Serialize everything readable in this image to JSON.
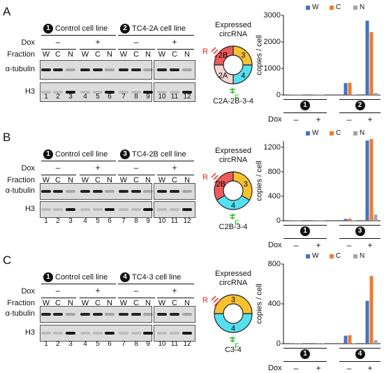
{
  "colors": {
    "W": "#4472c4",
    "C": "#ed7d31",
    "N": "#a5a5a5"
  },
  "panels": [
    {
      "letter": "A",
      "cell_line_1": "Control cell line",
      "cell_line_2": "TC4-2A cell line",
      "line_num_1": "1",
      "line_num_2": "2",
      "dox_label": "Dox",
      "fraction_label": "Fraction",
      "dox_signs": [
        "–",
        "+",
        "–",
        "+"
      ],
      "fractions": [
        "W",
        "C",
        "N",
        "W",
        "C",
        "N",
        "W",
        "C",
        "N",
        "W",
        "C",
        "N"
      ],
      "blot_labels": [
        "α-tubulin",
        "H3"
      ],
      "lanes": [
        "1",
        "2",
        "3",
        "4",
        "5",
        "6",
        "7",
        "8",
        "9",
        "10",
        "11",
        "12"
      ],
      "expressed": "Expressed\ncircRNA",
      "segments": [
        "2B",
        "3",
        "4",
        "2A"
      ],
      "primer_R": "R",
      "primer_F": "F",
      "construct": "C2A-2B-3-4",
      "chart_data": {
        "type": "bar",
        "ylabel": "copies / cell",
        "ylim": [
          0,
          3000
        ],
        "yticks": [
          "0",
          "1000",
          "2000",
          "3000"
        ],
        "categories": [
          "1 –",
          "1 +",
          "2 –",
          "2 +"
        ],
        "series": [
          {
            "name": "W",
            "values": [
              10,
              10,
              450,
              2800
            ]
          },
          {
            "name": "C",
            "values": [
              10,
              10,
              460,
              2370
            ]
          },
          {
            "name": "N",
            "values": [
              10,
              10,
              10,
              80
            ]
          }
        ],
        "legend": "top",
        "x_groups": [
          "1",
          "2"
        ],
        "x_signs": [
          "–",
          "+",
          "–",
          "+"
        ],
        "x_dox_label": "Dox"
      }
    },
    {
      "letter": "B",
      "cell_line_1": "Control cell line",
      "cell_line_2": "TC4-2B cell line",
      "line_num_1": "1",
      "line_num_2": "3",
      "dox_label": "Dox",
      "fraction_label": "Fraction",
      "dox_signs": [
        "–",
        "+",
        "–",
        "+"
      ],
      "fractions": [
        "W",
        "C",
        "N",
        "W",
        "C",
        "N",
        "W",
        "C",
        "N",
        "W",
        "C",
        "N"
      ],
      "blot_labels": [
        "α-tubulin",
        "H3"
      ],
      "lanes": [
        "1",
        "2",
        "3",
        "4",
        "5",
        "6",
        "7",
        "8",
        "9",
        "10",
        "11",
        "12"
      ],
      "expressed": "Expressed\ncircRNA",
      "segments": [
        "2B",
        "3",
        "4"
      ],
      "primer_R": "R",
      "primer_F": "F",
      "construct": "C2B-3-4",
      "chart_data": {
        "type": "bar",
        "ylabel": "copies / cell",
        "ylim": [
          0,
          1300
        ],
        "yticks": [
          "0",
          "400",
          "800",
          "1200"
        ],
        "categories": [
          "1 –",
          "1 +",
          "3 –",
          "3 +"
        ],
        "series": [
          {
            "name": "W",
            "values": [
              5,
              5,
              30,
              1310
            ]
          },
          {
            "name": "C",
            "values": [
              5,
              5,
              35,
              1335
            ]
          },
          {
            "name": "N",
            "values": [
              5,
              5,
              5,
              100
            ]
          }
        ],
        "legend": "top-right",
        "x_groups": [
          "1",
          "3"
        ],
        "x_signs": [
          "–",
          "+",
          "–",
          "+"
        ],
        "x_dox_label": "Dox"
      }
    },
    {
      "letter": "C",
      "cell_line_1": "Control cell line",
      "cell_line_2": "TC4-3 cell line",
      "line_num_1": "1",
      "line_num_2": "4",
      "dox_label": "Dox",
      "fraction_label": "Fraction",
      "dox_signs": [
        "–",
        "+",
        "–",
        "+"
      ],
      "fractions": [
        "W",
        "C",
        "N",
        "W",
        "C",
        "N",
        "W",
        "C",
        "N",
        "W",
        "C",
        "N"
      ],
      "blot_labels": [
        "α-tubulin",
        "H3"
      ],
      "lanes": [
        "1",
        "2",
        "3",
        "4",
        "5",
        "6",
        "7",
        "8",
        "9",
        "10",
        "11",
        "12"
      ],
      "expressed": "Expressed\ncircRNA",
      "segments": [
        "3",
        "4"
      ],
      "primer_R": "R",
      "primer_F": "F",
      "construct": "C3-4",
      "chart_data": {
        "type": "bar",
        "ylabel": "copies / cell",
        "ylim": [
          0,
          800
        ],
        "yticks": [
          "0",
          "400",
          "800"
        ],
        "categories": [
          "1 –",
          "1 +",
          "4 –",
          "4 +"
        ],
        "series": [
          {
            "name": "W",
            "values": [
              5,
              5,
              80,
              430
            ]
          },
          {
            "name": "C",
            "values": [
              5,
              5,
              85,
              680
            ]
          },
          {
            "name": "N",
            "values": [
              5,
              5,
              5,
              35
            ]
          }
        ],
        "legend": "top-right",
        "x_groups": [
          "1",
          "4"
        ],
        "x_signs": [
          "–",
          "+",
          "–",
          "+"
        ],
        "x_dox_label": "Dox"
      }
    }
  ]
}
